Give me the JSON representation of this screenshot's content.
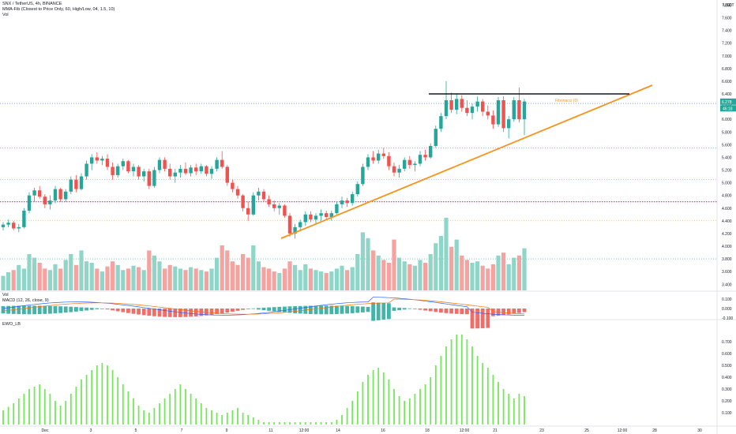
{
  "legend": {
    "symbol_line": "SNX / TetherUS, 4h, BINANCE",
    "mma_line": "MMA-Fib (Closest to Price Only, 60, High/Low, 04, 1.5, 10)",
    "vol_line": "Vol",
    "vol2_line": "Vol",
    "macd_line": "MACD (12, 26, close, 9)",
    "ewo_line": "EWO_LB"
  },
  "currency_label": "USDT",
  "annotation": {
    "fib_label": "Fibonacci (0)"
  },
  "price_tags": {
    "last_price": "6.278",
    "countdown": "46:18"
  },
  "colors": {
    "bull": "#26a69a",
    "bear": "#ef5350",
    "vol_bull": "#8fd5c8",
    "vol_bear": "#f5a3a0",
    "trendline": "#f7931a",
    "resistance": "#131722",
    "ewo": "#76e65c",
    "macd": "#2962ff",
    "signal": "#ff6d00",
    "magenta_level": "#b43a9b"
  },
  "chart_data": [
    {
      "type": "candlestick",
      "name": "price",
      "yticks": [
        3.4,
        3.6,
        3.8,
        4.0,
        4.2,
        4.4,
        4.6,
        4.8,
        5.0,
        5.2,
        5.4,
        5.6,
        5.8,
        6.0,
        6.2,
        6.4,
        6.6,
        6.8,
        7.0,
        7.2,
        7.4,
        7.6,
        7.8
      ],
      "ytick_labels": [
        "3.400",
        "3.600",
        "3.800",
        "4.000",
        "4.200",
        "4.400",
        "4.600",
        "4.800",
        "5.000",
        "5.200",
        "5.400",
        "5.600",
        "5.800",
        "6.000",
        "6.200",
        "6.400",
        "6.600",
        "6.800",
        "7.000",
        "7.200",
        "7.400",
        "7.600",
        "7.800"
      ],
      "x_labels": [
        "Dec",
        "3",
        "5",
        "7",
        "9",
        "11",
        "12:00",
        "14",
        "16",
        "18",
        "12:00",
        "21",
        "23",
        "25",
        "12:00",
        "28",
        "30"
      ],
      "ohlc": [
        [
          4.3,
          4.38,
          4.25,
          4.34
        ],
        [
          4.34,
          4.42,
          4.3,
          4.37
        ],
        [
          4.37,
          4.4,
          4.25,
          4.28
        ],
        [
          4.28,
          4.35,
          4.22,
          4.3
        ],
        [
          4.3,
          4.6,
          4.28,
          4.56
        ],
        [
          4.56,
          4.85,
          4.52,
          4.8
        ],
        [
          4.8,
          4.92,
          4.7,
          4.88
        ],
        [
          4.88,
          4.95,
          4.75,
          4.78
        ],
        [
          4.78,
          4.82,
          4.6,
          4.66
        ],
        [
          4.66,
          4.8,
          4.58,
          4.72
        ],
        [
          4.72,
          4.95,
          4.68,
          4.9
        ],
        [
          4.9,
          4.92,
          4.7,
          4.74
        ],
        [
          4.74,
          4.9,
          4.7,
          4.86
        ],
        [
          4.86,
          5.1,
          4.82,
          5.05
        ],
        [
          5.05,
          5.12,
          4.85,
          4.9
        ],
        [
          4.9,
          5.15,
          4.88,
          5.1
        ],
        [
          5.1,
          5.35,
          5.05,
          5.3
        ],
        [
          5.3,
          5.45,
          5.2,
          5.4
        ],
        [
          5.4,
          5.48,
          5.3,
          5.35
        ],
        [
          5.35,
          5.42,
          5.28,
          5.38
        ],
        [
          5.38,
          5.45,
          5.2,
          5.25
        ],
        [
          5.25,
          5.32,
          5.05,
          5.12
        ],
        [
          5.12,
          5.3,
          5.08,
          5.26
        ],
        [
          5.26,
          5.38,
          5.2,
          5.34
        ],
        [
          5.34,
          5.36,
          5.15,
          5.18
        ],
        [
          5.18,
          5.3,
          5.1,
          5.25
        ],
        [
          5.25,
          5.28,
          5.05,
          5.1
        ],
        [
          5.1,
          5.22,
          5.02,
          5.18
        ],
        [
          5.18,
          5.22,
          4.9,
          4.95
        ],
        [
          4.95,
          5.25,
          4.92,
          5.2
        ],
        [
          5.2,
          5.4,
          5.15,
          5.36
        ],
        [
          5.36,
          5.4,
          5.18,
          5.22
        ],
        [
          5.22,
          5.3,
          5.05,
          5.1
        ],
        [
          5.1,
          5.22,
          5.0,
          5.16
        ],
        [
          5.16,
          5.28,
          5.08,
          5.22
        ],
        [
          5.22,
          5.32,
          5.12,
          5.15
        ],
        [
          5.15,
          5.28,
          5.1,
          5.24
        ],
        [
          5.24,
          5.3,
          5.12,
          5.18
        ],
        [
          5.18,
          5.3,
          5.14,
          5.26
        ],
        [
          5.26,
          5.28,
          5.1,
          5.14
        ],
        [
          5.14,
          5.26,
          5.06,
          5.22
        ],
        [
          5.22,
          5.4,
          5.18,
          5.36
        ],
        [
          5.36,
          5.5,
          5.22,
          5.25
        ],
        [
          5.25,
          5.28,
          4.95,
          5.0
        ],
        [
          5.0,
          5.05,
          4.85,
          4.9
        ],
        [
          4.9,
          4.95,
          4.75,
          4.8
        ],
        [
          4.8,
          4.82,
          4.55,
          4.6
        ],
        [
          4.6,
          4.7,
          4.4,
          4.5
        ],
        [
          4.5,
          4.85,
          4.48,
          4.8
        ],
        [
          4.8,
          4.92,
          4.72,
          4.86
        ],
        [
          4.86,
          4.9,
          4.7,
          4.74
        ],
        [
          4.74,
          4.8,
          4.62,
          4.66
        ],
        [
          4.66,
          4.72,
          4.55,
          4.6
        ],
        [
          4.6,
          4.68,
          4.5,
          4.64
        ],
        [
          4.64,
          4.66,
          4.45,
          4.48
        ],
        [
          4.48,
          4.52,
          4.15,
          4.2
        ],
        [
          4.2,
          4.35,
          4.12,
          4.3
        ],
        [
          4.3,
          4.42,
          4.24,
          4.38
        ],
        [
          4.38,
          4.55,
          4.32,
          4.5
        ],
        [
          4.5,
          4.55,
          4.38,
          4.42
        ],
        [
          4.42,
          4.52,
          4.36,
          4.48
        ],
        [
          4.48,
          4.58,
          4.4,
          4.52
        ],
        [
          4.52,
          4.56,
          4.42,
          4.46
        ],
        [
          4.46,
          4.56,
          4.4,
          4.52
        ],
        [
          4.52,
          4.7,
          4.5,
          4.66
        ],
        [
          4.66,
          4.78,
          4.6,
          4.72
        ],
        [
          4.72,
          4.76,
          4.62,
          4.68
        ],
        [
          4.68,
          4.86,
          4.64,
          4.82
        ],
        [
          4.82,
          5.02,
          4.78,
          4.98
        ],
        [
          4.98,
          5.3,
          4.95,
          5.25
        ],
        [
          5.25,
          5.45,
          5.2,
          5.4
        ],
        [
          5.4,
          5.5,
          5.3,
          5.35
        ],
        [
          5.35,
          5.52,
          5.3,
          5.46
        ],
        [
          5.46,
          5.55,
          5.38,
          5.42
        ],
        [
          5.42,
          5.48,
          5.2,
          5.26
        ],
        [
          5.26,
          5.32,
          5.1,
          5.16
        ],
        [
          5.16,
          5.28,
          5.08,
          5.22
        ],
        [
          5.22,
          5.4,
          5.18,
          5.36
        ],
        [
          5.36,
          5.42,
          5.22,
          5.28
        ],
        [
          5.28,
          5.34,
          5.18,
          5.3
        ],
        [
          5.3,
          5.5,
          5.26,
          5.44
        ],
        [
          5.44,
          5.52,
          5.35,
          5.4
        ],
        [
          5.4,
          5.62,
          5.38,
          5.58
        ],
        [
          5.58,
          5.9,
          5.55,
          5.85
        ],
        [
          5.85,
          6.1,
          5.8,
          6.05
        ],
        [
          6.05,
          6.6,
          6.0,
          6.3
        ],
        [
          6.3,
          6.42,
          6.1,
          6.15
        ],
        [
          6.15,
          6.4,
          6.08,
          6.32
        ],
        [
          6.32,
          6.38,
          6.12,
          6.18
        ],
        [
          6.18,
          6.3,
          6.05,
          6.1
        ],
        [
          6.1,
          6.25,
          6.0,
          6.2
        ],
        [
          6.2,
          6.36,
          6.12,
          6.28
        ],
        [
          6.28,
          6.32,
          6.05,
          6.12
        ],
        [
          6.12,
          6.22,
          6.0,
          6.06
        ],
        [
          6.06,
          6.14,
          5.85,
          5.92
        ],
        [
          5.92,
          6.35,
          5.88,
          6.3
        ],
        [
          6.3,
          6.36,
          5.8,
          5.86
        ],
        [
          5.86,
          6.05,
          5.7,
          6.0
        ],
        [
          6.0,
          6.35,
          5.96,
          6.3
        ],
        [
          6.3,
          6.5,
          5.95,
          6.0
        ],
        [
          6.0,
          6.32,
          5.75,
          6.28
        ]
      ],
      "volume": [
        0.2,
        0.25,
        0.28,
        0.35,
        0.3,
        0.5,
        0.45,
        0.38,
        0.3,
        0.28,
        0.36,
        0.3,
        0.42,
        0.5,
        0.35,
        0.55,
        0.4,
        0.38,
        0.3,
        0.26,
        0.33,
        0.4,
        0.35,
        0.28,
        0.3,
        0.34,
        0.32,
        0.28,
        0.55,
        0.48,
        0.4,
        0.3,
        0.35,
        0.33,
        0.3,
        0.28,
        0.32,
        0.3,
        0.28,
        0.26,
        0.3,
        0.45,
        0.62,
        0.55,
        0.4,
        0.35,
        0.5,
        0.45,
        0.62,
        0.4,
        0.32,
        0.3,
        0.26,
        0.24,
        0.3,
        0.4,
        0.35,
        0.28,
        0.36,
        0.3,
        0.28,
        0.26,
        0.24,
        0.26,
        0.3,
        0.34,
        0.28,
        0.32,
        0.5,
        0.8,
        0.72,
        0.55,
        0.48,
        0.42,
        0.38,
        0.7,
        0.45,
        0.4,
        0.36,
        0.34,
        0.42,
        0.38,
        0.5,
        0.65,
        0.75,
        1.0,
        0.6,
        0.7,
        0.48,
        0.42,
        0.38,
        0.4,
        0.34,
        0.3,
        0.36,
        0.48,
        0.52,
        0.36,
        0.45,
        0.48,
        0.58
      ]
    },
    {
      "type": "histogram",
      "name": "MACD",
      "yticks": [
        -0.1,
        0.0,
        0.1
      ],
      "ytick_labels": [
        "-0.100",
        "0.000",
        "0.100"
      ]
    },
    {
      "type": "bar",
      "name": "EWO_LB",
      "yticks": [
        0.1,
        0.2,
        0.3,
        0.4,
        0.5,
        0.6,
        0.7
      ],
      "ytick_labels": [
        "0.100",
        "0.200",
        "0.300",
        "0.400",
        "0.500",
        "0.600",
        "0.700"
      ],
      "values": [
        0.12,
        0.15,
        0.18,
        0.22,
        0.26,
        0.3,
        0.32,
        0.34,
        0.3,
        0.26,
        0.2,
        0.16,
        0.2,
        0.26,
        0.32,
        0.38,
        0.42,
        0.46,
        0.5,
        0.52,
        0.5,
        0.46,
        0.4,
        0.34,
        0.28,
        0.22,
        0.16,
        0.12,
        0.1,
        0.14,
        0.18,
        0.22,
        0.26,
        0.3,
        0.34,
        0.3,
        0.26,
        0.22,
        0.18,
        0.14,
        0.12,
        0.1,
        0.08,
        0.1,
        0.12,
        0.14,
        0.1,
        0.08,
        0.06,
        0.04,
        0.02,
        0.02,
        0.02,
        0.02,
        0.02,
        0.02,
        0.02,
        0.02,
        0.02,
        0.02,
        0.02,
        0.02,
        0.02,
        0.02,
        0.04,
        0.08,
        0.14,
        0.2,
        0.28,
        0.36,
        0.42,
        0.46,
        0.48,
        0.44,
        0.38,
        0.3,
        0.24,
        0.2,
        0.22,
        0.26,
        0.3,
        0.34,
        0.4,
        0.5,
        0.58,
        0.66,
        0.72,
        0.76,
        0.76,
        0.72,
        0.66,
        0.58,
        0.52,
        0.48,
        0.42,
        0.36,
        0.3,
        0.26,
        0.22,
        0.26,
        0.24
      ]
    }
  ]
}
